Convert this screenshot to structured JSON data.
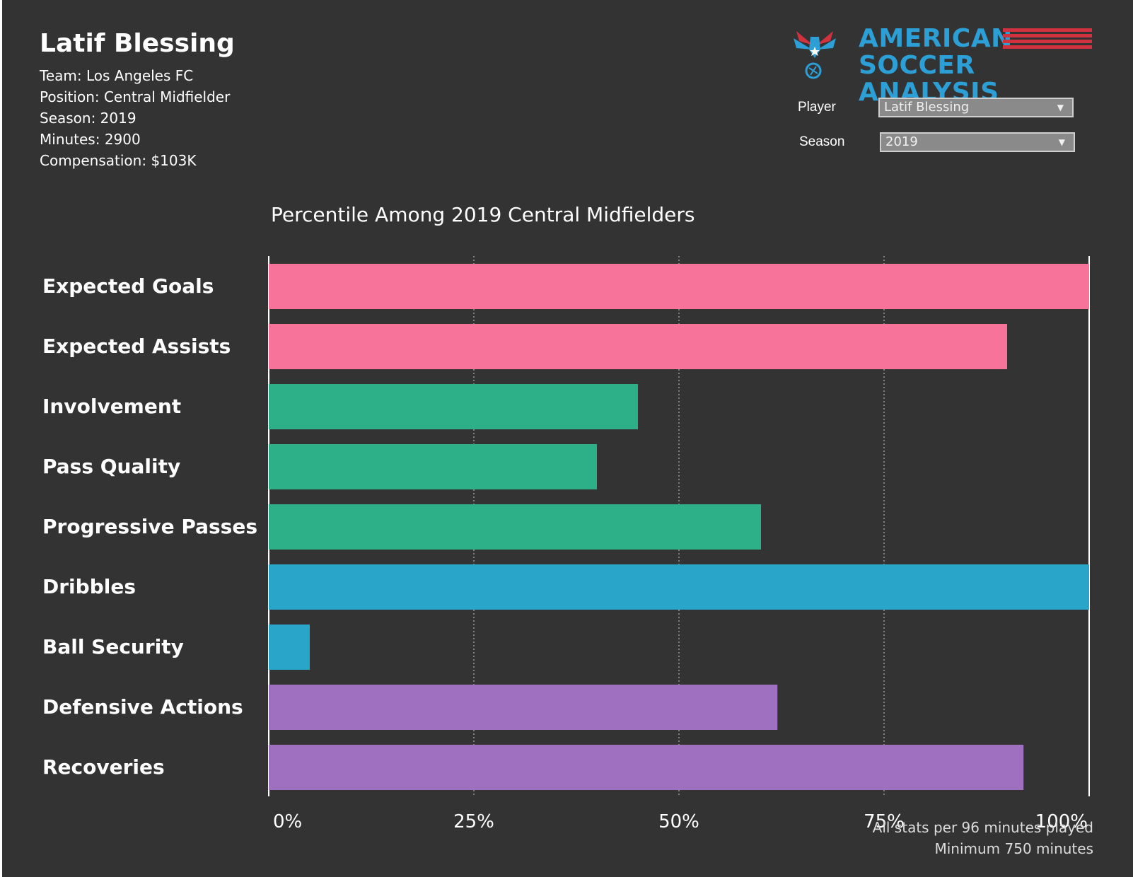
{
  "player": {
    "name": "Latif Blessing",
    "team": "Team: Los Angeles FC",
    "position": "Position: Central Midfielder",
    "season": "Season: 2019",
    "minutes": "Minutes: 2900",
    "compensation": "Compensation: $103K"
  },
  "logo": {
    "line1": "AMERICAN",
    "line2": "SOCCER ANALYSIS",
    "color_blue": "#2b9fd6",
    "color_red": "#d13240"
  },
  "filters": {
    "player_label": "Player",
    "player_value": "Latif Blessing",
    "season_label": "Season",
    "season_value": "2019"
  },
  "chart_data": {
    "type": "bar",
    "orientation": "horizontal",
    "title": "Percentile Among 2019 Central Midfielders",
    "categories": [
      "Expected Goals",
      "Expected Assists",
      "Involvement",
      "Pass Quality",
      "Progressive Passes",
      "Dribbles",
      "Ball Security",
      "Defensive Actions",
      "Recoveries"
    ],
    "values": [
      100,
      90,
      45,
      40,
      60,
      100,
      5,
      62,
      92
    ],
    "colors": [
      "#f87399",
      "#f87399",
      "#2db088",
      "#2db088",
      "#2db088",
      "#29a5c9",
      "#29a5c9",
      "#a070c0",
      "#a070c0"
    ],
    "xlim": [
      0,
      100
    ],
    "xticks": [
      "0%",
      "25%",
      "50%",
      "75%",
      "100%"
    ],
    "xtick_values": [
      0,
      25,
      50,
      75,
      100
    ],
    "grid": true
  },
  "footnotes": {
    "line1": "All stats per 96 minutes played",
    "line2": "Minimum 750 minutes"
  }
}
